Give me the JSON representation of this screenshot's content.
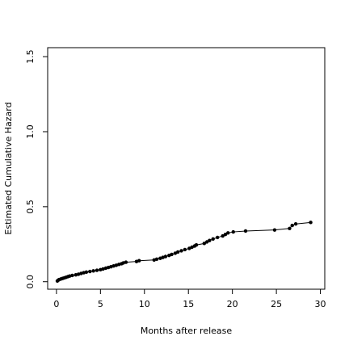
{
  "chart_data": {
    "type": "line",
    "title": "",
    "xlabel": "Months after release",
    "ylabel": "Estimated Cumulative Hazard",
    "xlim": [
      -1,
      30.5
    ],
    "ylim": [
      -0.05,
      1.56
    ],
    "x_ticks": [
      0,
      5,
      10,
      15,
      20,
      25,
      30
    ],
    "x_tick_labels": [
      "0",
      "5",
      "10",
      "15",
      "20",
      "25",
      "30"
    ],
    "y_ticks": [
      0.0,
      0.5,
      1.0,
      1.5
    ],
    "y_tick_labels": [
      "0.0",
      "0.5",
      "1.0",
      "1.5"
    ],
    "grid": false,
    "legend": "none",
    "colors": {
      "line": "#000000",
      "points": "#000000",
      "frame": "#000000"
    },
    "series": [
      {
        "x": [
          0.1,
          0.2,
          0.3,
          0.5,
          0.7,
          0.9,
          1.1,
          1.3,
          1.5,
          1.8,
          2.2,
          2.5,
          2.8,
          3.1,
          3.4,
          3.8,
          4.2,
          4.6,
          5.0,
          5.3,
          5.6,
          5.9,
          6.2,
          6.5,
          6.8,
          7.1,
          7.4,
          7.6,
          7.9,
          9.1,
          9.4,
          11.1,
          11.4,
          11.8,
          12.1,
          12.4,
          12.8,
          13.1,
          13.5,
          13.8,
          14.2,
          14.6,
          15.1,
          15.4,
          15.7,
          15.9,
          16.8,
          17.1,
          17.4,
          17.8,
          18.3,
          18.9,
          19.2,
          19.5,
          20.1,
          21.5,
          24.8,
          26.5,
          26.8,
          27.2,
          28.9
        ],
        "y": [
          0.005,
          0.01,
          0.014,
          0.018,
          0.022,
          0.026,
          0.03,
          0.034,
          0.038,
          0.042,
          0.046,
          0.05,
          0.055,
          0.06,
          0.064,
          0.068,
          0.072,
          0.076,
          0.08,
          0.085,
          0.09,
          0.095,
          0.1,
          0.105,
          0.11,
          0.115,
          0.12,
          0.125,
          0.13,
          0.135,
          0.14,
          0.145,
          0.15,
          0.156,
          0.162,
          0.168,
          0.175,
          0.182,
          0.19,
          0.198,
          0.206,
          0.214,
          0.222,
          0.23,
          0.238,
          0.245,
          0.255,
          0.265,
          0.275,
          0.285,
          0.295,
          0.305,
          0.315,
          0.325,
          0.332,
          0.338,
          0.345,
          0.355,
          0.375,
          0.385,
          0.395
        ]
      }
    ]
  }
}
